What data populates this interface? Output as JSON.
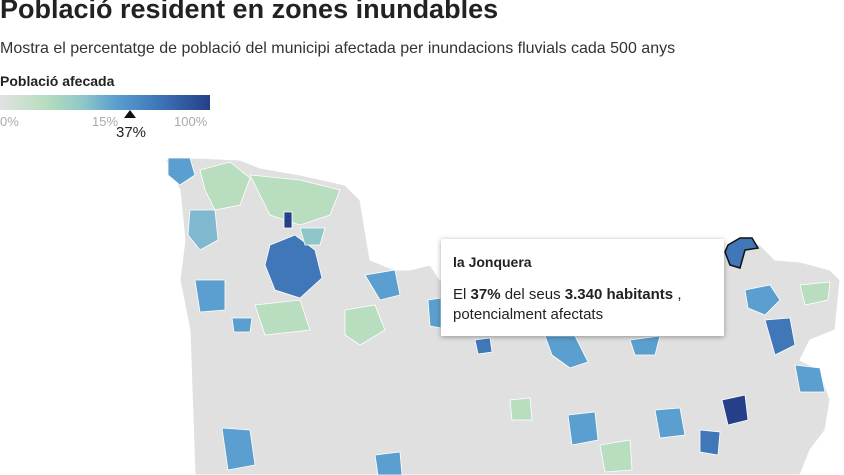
{
  "header": {
    "title": "Població resident en zones inundables",
    "subtitle": "Mostra el percentatge de població del municipi afectada per inundacions fluvials cada 500 anys"
  },
  "legend": {
    "title": "Població afecada",
    "ticks": [
      "0%",
      "15%",
      "100%"
    ],
    "marker": "37%"
  },
  "tooltip": {
    "title": "la Jonquera",
    "prefix": "El",
    "share": "37%",
    "middle": "del seus",
    "population": "3.340 habitants",
    "suffix": ",",
    "line2": "potencialment afectats"
  }
}
